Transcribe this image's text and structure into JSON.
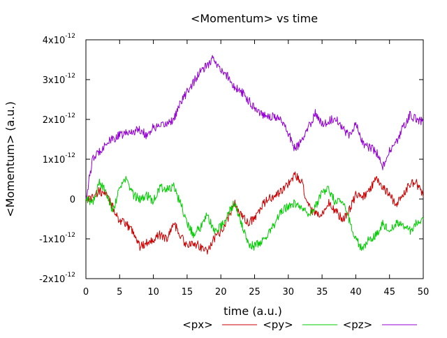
{
  "chart_data": {
    "type": "line",
    "title": "<Momentum> vs time",
    "xlabel": "time (a.u.)",
    "ylabel": "<Momentum> (a.u.)",
    "xlim": [
      0,
      50
    ],
    "ylim": [
      -2e-12,
      4e-12
    ],
    "grid": false,
    "legend_placement": "bottom",
    "x_ticks": [
      {
        "value": 0,
        "label": "0"
      },
      {
        "value": 5,
        "label": "5"
      },
      {
        "value": 10,
        "label": "10"
      },
      {
        "value": 15,
        "label": "15"
      },
      {
        "value": 20,
        "label": "20"
      },
      {
        "value": 25,
        "label": "25"
      },
      {
        "value": 30,
        "label": "30"
      },
      {
        "value": 35,
        "label": "35"
      },
      {
        "value": 40,
        "label": "40"
      },
      {
        "value": 45,
        "label": "45"
      },
      {
        "value": 50,
        "label": "50"
      }
    ],
    "y_ticks": [
      {
        "value": 4e-12,
        "mantissa": "4x10",
        "exp": "-12"
      },
      {
        "value": 3e-12,
        "mantissa": "3x10",
        "exp": "-12"
      },
      {
        "value": 2e-12,
        "mantissa": "2x10",
        "exp": "-12"
      },
      {
        "value": 1e-12,
        "mantissa": "1x10",
        "exp": "-12"
      },
      {
        "value": 0,
        "mantissa": "0",
        "exp": ""
      },
      {
        "value": -1e-12,
        "mantissa": "-1x10",
        "exp": "-12"
      },
      {
        "value": -2e-12,
        "mantissa": "-2x10",
        "exp": "-12"
      }
    ],
    "x": [
      0,
      1,
      2,
      3,
      4,
      5,
      6,
      7,
      8,
      9,
      10,
      11,
      12,
      13,
      14,
      15,
      16,
      17,
      18,
      19,
      20,
      21,
      22,
      23,
      24,
      25,
      26,
      27,
      28,
      29,
      30,
      31,
      32,
      33,
      34,
      35,
      36,
      37,
      38,
      39,
      40,
      41,
      42,
      43,
      44,
      45,
      46,
      47,
      48,
      49,
      50
    ],
    "series": [
      {
        "name": "<px>",
        "color": "#cc0000",
        "values": [
          0,
          5e-14,
          2e-13,
          1e-13,
          -2e-13,
          -5.5e-13,
          -6.5e-13,
          -8e-13,
          -1.2e-12,
          -1.1e-12,
          -1e-12,
          -9e-13,
          -1e-12,
          -6e-13,
          -9e-13,
          -1.2e-12,
          -1.1e-12,
          -1.2e-12,
          -1.3e-12,
          -1e-12,
          -8e-13,
          -5e-13,
          -1e-13,
          -4e-13,
          -6e-13,
          -5e-13,
          -2e-13,
          0,
          5e-14,
          2e-13,
          4e-13,
          6e-13,
          4e-13,
          -2e-13,
          -4e-13,
          -4e-13,
          -1e-13,
          -3e-13,
          -5e-13,
          -3e-13,
          1e-13,
          5e-14,
          2e-13,
          5.5e-13,
          3e-13,
          1e-13,
          -1.5e-13,
          1e-13,
          4e-13,
          4e-13,
          5e-14
        ]
      },
      {
        "name": "<py>",
        "color": "#00cc00",
        "values": [
          0,
          -1e-13,
          4e-13,
          2e-13,
          -3e-13,
          3e-13,
          5e-13,
          1e-13,
          0,
          1e-13,
          -5e-14,
          3e-13,
          2.5e-13,
          3e-13,
          -1e-13,
          -6e-13,
          -9e-13,
          -7e-13,
          -4e-13,
          -8e-13,
          -7e-13,
          -4e-13,
          -1e-13,
          -6e-13,
          -1.1e-12,
          -1.2e-12,
          -1.05e-12,
          -9e-13,
          -6e-13,
          -3e-13,
          -2e-13,
          -1e-13,
          -2e-13,
          -4e-13,
          -2e-13,
          2e-13,
          2.5e-13,
          -1e-13,
          0,
          -5e-13,
          -1e-12,
          -1.3e-12,
          -1e-12,
          -9e-13,
          -6e-13,
          -8e-13,
          -6e-13,
          -7e-13,
          -8e-13,
          -6e-13,
          -5e-13
        ]
      },
      {
        "name": "<pz>",
        "color": "#9400d3",
        "values": [
          0,
          1e-12,
          1.2e-12,
          1.4e-12,
          1.5e-12,
          1.6e-12,
          1.65e-12,
          1.7e-12,
          1.75e-12,
          1.6e-12,
          1.8e-12,
          1.8e-12,
          1.9e-12,
          2e-12,
          2.4e-12,
          2.7e-12,
          2.95e-12,
          3.2e-12,
          3.35e-12,
          3.55e-12,
          3.2e-12,
          3.1e-12,
          2.8e-12,
          2.7e-12,
          2.5e-12,
          2.3e-12,
          2.15e-12,
          2.1e-12,
          2.05e-12,
          2e-12,
          1.65e-12,
          1.25e-12,
          1.45e-12,
          1.8e-12,
          2.15e-12,
          1.9e-12,
          1.95e-12,
          2.05e-12,
          1.8e-12,
          1.6e-12,
          1.9e-12,
          1.4e-12,
          1.3e-12,
          1.2e-12,
          8e-13,
          1.2e-12,
          1.4e-12,
          1.8e-12,
          2.1e-12,
          2e-12,
          1.95e-12
        ]
      }
    ]
  }
}
